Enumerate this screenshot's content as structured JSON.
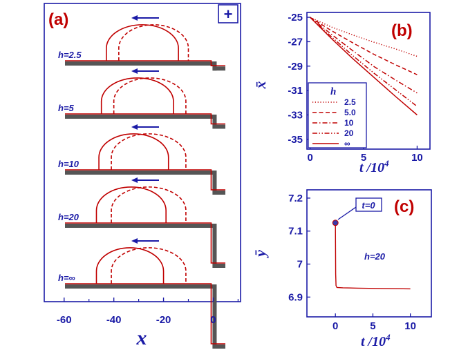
{
  "colors": {
    "axis": "#1a1aa6",
    "curve": "#c00000",
    "wall": "#555555",
    "arrow": "#1a1aa6",
    "marker": "#3a3aa8"
  },
  "chart_data": [
    {
      "panel": "(a)",
      "type": "line",
      "xlabel": "x",
      "xticks": [
        "-60",
        "-40",
        "-20",
        "0"
      ],
      "xlim": [
        -68,
        11
      ],
      "corner_symbol": "+",
      "profiles": [
        {
          "h_label": "h=2.5",
          "wall_depth": 2.5,
          "solid": {
            "left": -43,
            "right": -14,
            "height": 14.5
          },
          "dashed": {
            "left": -38,
            "right": -10,
            "height": 14.5
          }
        },
        {
          "h_label": "h=5",
          "wall_depth": 5,
          "solid": {
            "left": -45,
            "right": -16,
            "height": 14.5
          },
          "dashed": {
            "left": -40,
            "right": -11,
            "height": 14.5
          }
        },
        {
          "h_label": "h=10",
          "wall_depth": 10,
          "solid": {
            "left": -46,
            "right": -18,
            "height": 14.5
          },
          "dashed": {
            "left": -41,
            "right": -11,
            "height": 14.5
          }
        },
        {
          "h_label": "h=20",
          "wall_depth": 20,
          "solid": {
            "left": -47,
            "right": -19,
            "height": 14.5
          },
          "dashed": {
            "left": -41,
            "right": -11,
            "height": 14.5
          }
        },
        {
          "h_label": "h=∞",
          "wall_depth": 30,
          "solid": {
            "left": -47,
            "right": -20,
            "height": 14.5
          },
          "dashed": {
            "left": -41,
            "right": -11,
            "height": 14.5
          }
        }
      ]
    },
    {
      "panel": "(b)",
      "type": "line",
      "xlabel": "t /10",
      "xlabel_exp": "4",
      "ylabel": "x̄",
      "xlim": [
        -0.3,
        11.2
      ],
      "ylim": [
        -35.8,
        -24.6
      ],
      "xticks": [
        0,
        5,
        10
      ],
      "yticks": [
        -25,
        -27,
        -29,
        -31,
        -33,
        -35
      ],
      "legend_title": "h",
      "series": [
        {
          "name": "2.5",
          "dash": "dotted",
          "x": [
            0,
            2,
            4,
            6,
            8,
            10
          ],
          "y": [
            -25,
            -25.8,
            -26.45,
            -27.05,
            -27.6,
            -28.2
          ]
        },
        {
          "name": "5.0",
          "dash": "dashed",
          "x": [
            0,
            2,
            4,
            6,
            8,
            10
          ],
          "y": [
            -25,
            -26.1,
            -27.1,
            -28.05,
            -28.9,
            -29.7
          ]
        },
        {
          "name": "10",
          "dash": "dashdot",
          "x": [
            0,
            2,
            4,
            6,
            8,
            10
          ],
          "y": [
            -25,
            -26.4,
            -27.75,
            -29.05,
            -30.15,
            -31.2
          ]
        },
        {
          "name": "20",
          "dash": "dashdotdot",
          "x": [
            0,
            2,
            4,
            6,
            8,
            10
          ],
          "y": [
            -25,
            -26.6,
            -28.15,
            -29.6,
            -30.95,
            -32.3
          ]
        },
        {
          "name": "∞",
          "dash": "solid",
          "x": [
            0,
            2,
            4,
            6,
            8,
            10
          ],
          "y": [
            -25,
            -26.75,
            -28.4,
            -29.95,
            -31.5,
            -33.0
          ]
        }
      ]
    },
    {
      "panel": "(c)",
      "type": "line",
      "xlabel": "t /10",
      "xlabel_exp": "4",
      "ylabel": "ȳ",
      "xlim": [
        -3.8,
        12.8
      ],
      "ylim": [
        6.84,
        7.225
      ],
      "xticks": [
        0,
        5,
        10
      ],
      "yticks": [
        6.9,
        7,
        7.1,
        7.2
      ],
      "ytick_labels": [
        "6.9",
        "7",
        "7.1",
        "7.2"
      ],
      "series": [
        {
          "name": "h=20",
          "x": [
            0,
            0.02,
            0.04,
            0.08,
            0.2,
            1,
            3,
            6,
            10
          ],
          "y": [
            7.125,
            7.05,
            6.97,
            6.935,
            6.929,
            6.928,
            6.927,
            6.926,
            6.925
          ]
        }
      ],
      "annotations": [
        {
          "text": "t=0"
        },
        {
          "text": "h=20"
        }
      ]
    }
  ]
}
